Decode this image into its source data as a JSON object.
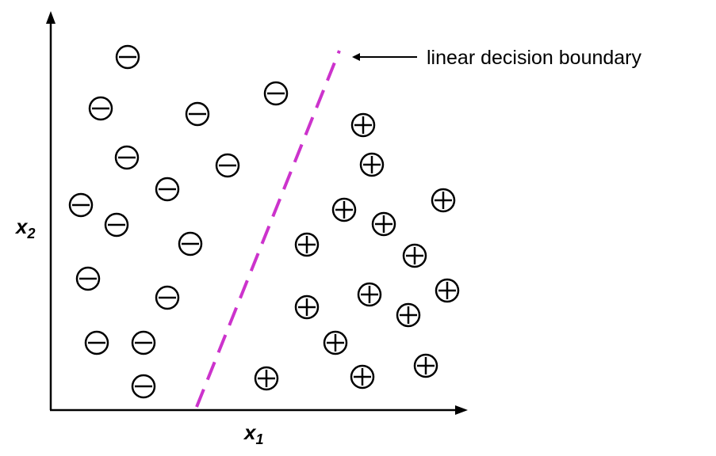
{
  "annotation": {
    "text": "linear decision boundary"
  },
  "axes": {
    "x": {
      "var": "x",
      "sub": "1"
    },
    "y": {
      "var": "x",
      "sub": "2"
    }
  },
  "boundary_color": "#cc33cc",
  "classes": {
    "negative": "⊖",
    "positive": "⊕"
  },
  "chart_data": {
    "type": "scatter",
    "series": [
      {
        "class": "negative",
        "points": [
          [
            161,
            72
          ],
          [
            127,
            137
          ],
          [
            249,
            144
          ],
          [
            348,
            118
          ],
          [
            160,
            199
          ],
          [
            287,
            209
          ],
          [
            211,
            239
          ],
          [
            102,
            259
          ],
          [
            147,
            284
          ],
          [
            240,
            308
          ],
          [
            111,
            352
          ],
          [
            211,
            376
          ],
          [
            122,
            433
          ],
          [
            181,
            433
          ],
          [
            181,
            488
          ]
        ]
      },
      {
        "class": "positive",
        "points": [
          [
            458,
            158
          ],
          [
            469,
            208
          ],
          [
            559,
            253
          ],
          [
            434,
            265
          ],
          [
            484,
            283
          ],
          [
            387,
            309
          ],
          [
            523,
            323
          ],
          [
            564,
            367
          ],
          [
            466,
            372
          ],
          [
            387,
            388
          ],
          [
            515,
            398
          ],
          [
            423,
            433
          ],
          [
            336,
            478
          ],
          [
            457,
            476
          ],
          [
            537,
            462
          ]
        ]
      }
    ],
    "boundary": [
      [
        248,
        514
      ],
      [
        428,
        64
      ]
    ]
  }
}
